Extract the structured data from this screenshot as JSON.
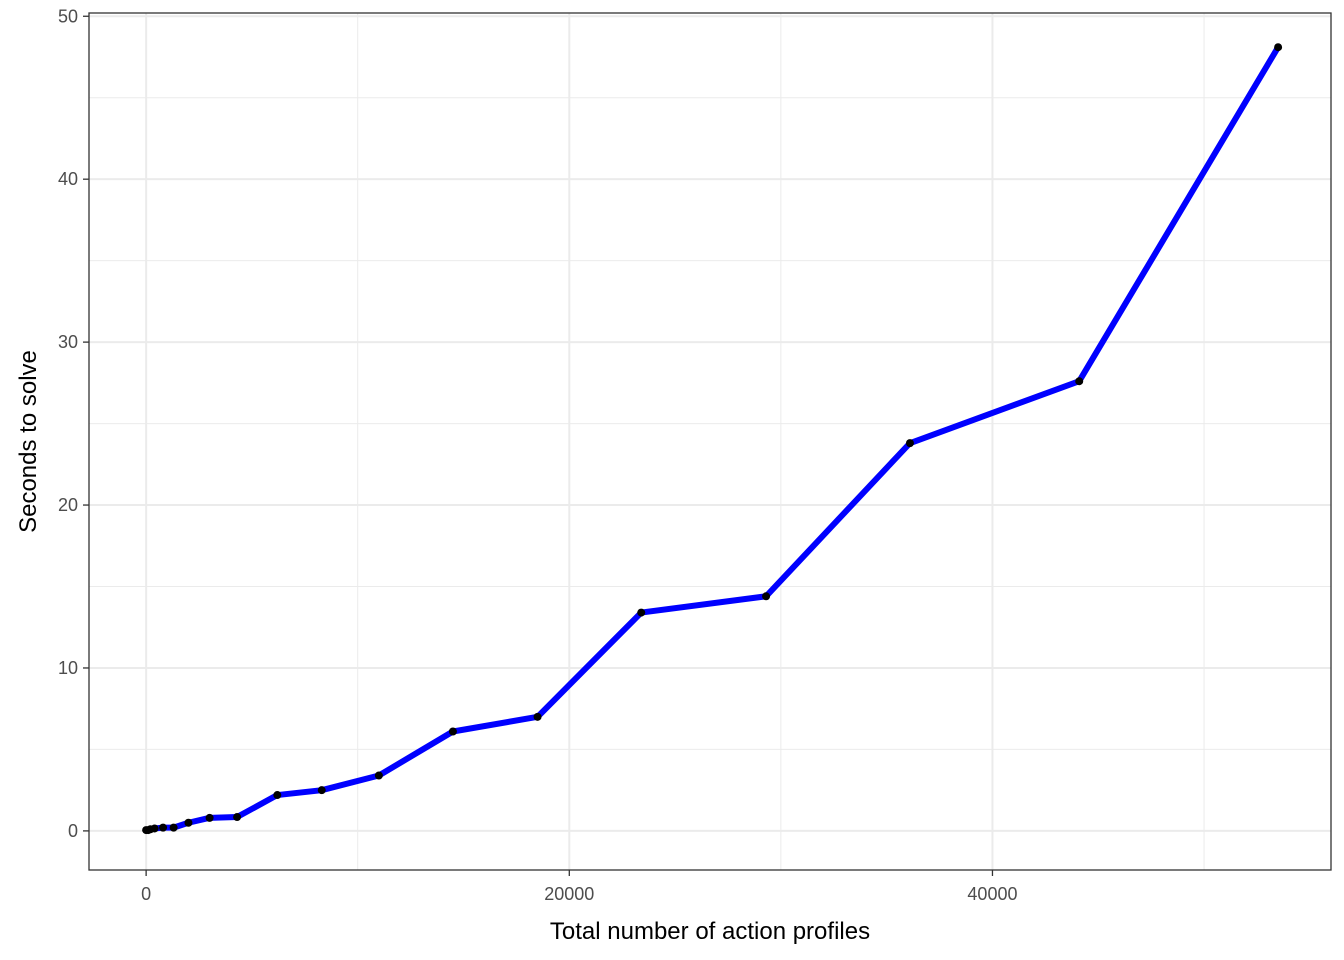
{
  "chart_data": {
    "type": "line",
    "title": "",
    "xlabel": "Total number of action profiles",
    "ylabel": "Seconds to solve",
    "xlim": [
      -2700,
      56000
    ],
    "ylim": [
      -2.4,
      50.2
    ],
    "x_ticks": [
      {
        "value": 0,
        "label": "0"
      },
      {
        "value": 20000,
        "label": "20000"
      },
      {
        "value": 40000,
        "label": "40000"
      }
    ],
    "x_minor_ticks": [
      10000,
      30000,
      50000
    ],
    "y_ticks": [
      {
        "value": 0,
        "label": "0"
      },
      {
        "value": 10,
        "label": "10"
      },
      {
        "value": 20,
        "label": "20"
      },
      {
        "value": 30,
        "label": "30"
      },
      {
        "value": 40,
        "label": "40"
      },
      {
        "value": 50,
        "label": "50"
      }
    ],
    "y_minor_ticks": [
      5,
      15,
      25,
      35,
      45
    ],
    "grid": true,
    "colors": {
      "line": "#0000ff",
      "point": "#000000",
      "grid": "#ebebeb",
      "border": "#333333"
    },
    "series": [
      {
        "x": [
          0,
          100,
          200,
          400,
          800,
          1300,
          2000,
          3000,
          4300,
          6200,
          8300,
          11000,
          14500,
          18500,
          23400,
          29300,
          36100,
          44100,
          53500
        ],
        "y": [
          0.05,
          0.05,
          0.1,
          0.15,
          0.2,
          0.2,
          0.5,
          0.8,
          0.85,
          2.2,
          2.5,
          3.4,
          6.1,
          7.0,
          13.4,
          14.4,
          23.8,
          27.6,
          48.1
        ]
      }
    ]
  }
}
